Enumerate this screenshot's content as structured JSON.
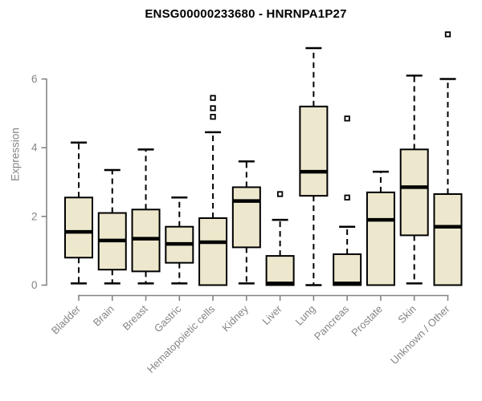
{
  "chart_data": {
    "type": "boxplot",
    "title": "ENSG00000233680 - HNRNPA1P27",
    "ylabel": "Expression",
    "xlabel": "",
    "ylim": [
      0,
      6
    ],
    "yticks": [
      0,
      2,
      4,
      6
    ],
    "grid": false,
    "legend": "none",
    "colors": {
      "box_fill": "#EDE8CD",
      "box_stroke": "#000000",
      "median": "#000000",
      "whisker": "#000000",
      "axis": "#858585",
      "title_text": "#000000",
      "background": "#FFFFFF"
    },
    "categories": [
      "Bladder",
      "Brain",
      "Breast",
      "Gastric",
      "Hematopoietic cells",
      "Kidney",
      "Liver",
      "Lung",
      "Pancreas",
      "Prostate",
      "Skin",
      "Unknown / Other"
    ],
    "series": [
      {
        "category": "Bladder",
        "whisker_low": 0.05,
        "q1": 0.8,
        "median": 1.55,
        "q3": 2.55,
        "whisker_high": 4.15,
        "outliers": []
      },
      {
        "category": "Brain",
        "whisker_low": 0.05,
        "q1": 0.45,
        "median": 1.3,
        "q3": 2.1,
        "whisker_high": 3.35,
        "outliers": []
      },
      {
        "category": "Breast",
        "whisker_low": 0.05,
        "q1": 0.4,
        "median": 1.35,
        "q3": 2.2,
        "whisker_high": 3.95,
        "outliers": []
      },
      {
        "category": "Gastric",
        "whisker_low": 0.05,
        "q1": 0.65,
        "median": 1.2,
        "q3": 1.7,
        "whisker_high": 2.55,
        "outliers": []
      },
      {
        "category": "Hematopoietic cells",
        "whisker_low": 0,
        "q1": 0,
        "median": 1.25,
        "q3": 1.95,
        "whisker_high": 4.45,
        "outliers": [
          4.9,
          5.15,
          5.45
        ]
      },
      {
        "category": "Kidney",
        "whisker_low": 0.05,
        "q1": 1.1,
        "median": 2.45,
        "q3": 2.85,
        "whisker_high": 3.6,
        "outliers": []
      },
      {
        "category": "Liver",
        "whisker_low": 0,
        "q1": 0,
        "median": 0.05,
        "q3": 0.85,
        "whisker_high": 1.9,
        "outliers": [
          2.65
        ]
      },
      {
        "category": "Lung",
        "whisker_low": 0,
        "q1": 2.6,
        "median": 3.3,
        "q3": 5.2,
        "whisker_high": 6.9,
        "outliers": []
      },
      {
        "category": "Pancreas",
        "whisker_low": 0,
        "q1": 0,
        "median": 0.05,
        "q3": 0.9,
        "whisker_high": 1.7,
        "outliers": [
          2.55,
          4.85
        ]
      },
      {
        "category": "Prostate",
        "whisker_low": 0,
        "q1": 0,
        "median": 1.9,
        "q3": 2.7,
        "whisker_high": 3.3,
        "outliers": []
      },
      {
        "category": "Skin",
        "whisker_low": 0.05,
        "q1": 1.45,
        "median": 2.85,
        "q3": 3.95,
        "whisker_high": 6.1,
        "outliers": []
      },
      {
        "category": "Unknown / Other",
        "whisker_low": 0,
        "q1": 0,
        "median": 1.7,
        "q3": 2.65,
        "whisker_high": 6.0,
        "outliers": [
          7.3
        ]
      }
    ]
  }
}
